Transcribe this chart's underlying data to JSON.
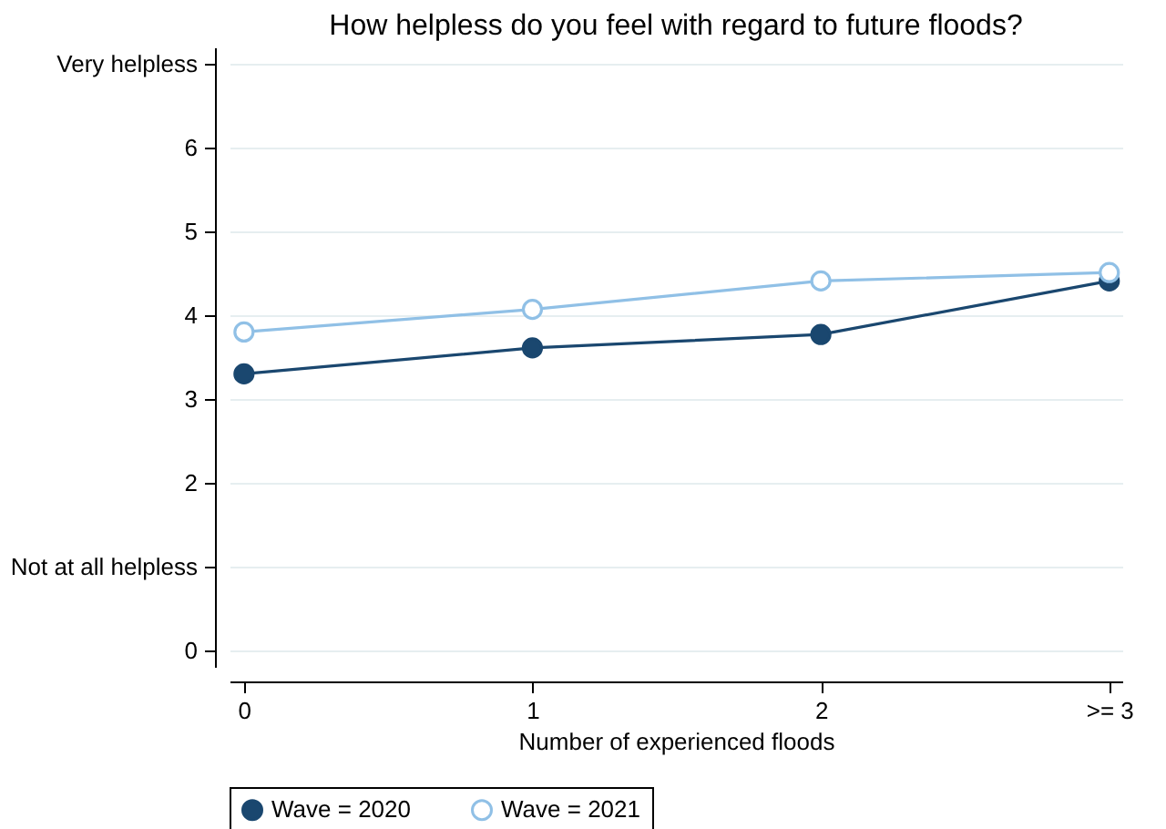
{
  "chart_data": {
    "type": "line",
    "title": "How helpless do you feel with regard to future floods?",
    "xlabel": "Number of experienced floods",
    "categories": [
      "0",
      "1",
      "2",
      ">= 3"
    ],
    "series": [
      {
        "name": "Wave = 2020",
        "color": "#1a476f",
        "values": [
          3.3,
          3.61,
          3.77,
          4.41
        ]
      },
      {
        "name": "Wave = 2021",
        "color": "#90c0e6",
        "values": [
          3.8,
          4.07,
          4.41,
          4.51
        ]
      }
    ],
    "ylim": [
      -0.2,
      7.2
    ],
    "yticks": [
      0,
      {
        "value": 1,
        "label": "Not at all helpless"
      },
      2,
      3,
      4,
      5,
      6,
      {
        "value": 7,
        "label": "Very helpless"
      }
    ],
    "grid": "y",
    "legend": "bottom",
    "marker": "circle",
    "line_style": "solid"
  }
}
